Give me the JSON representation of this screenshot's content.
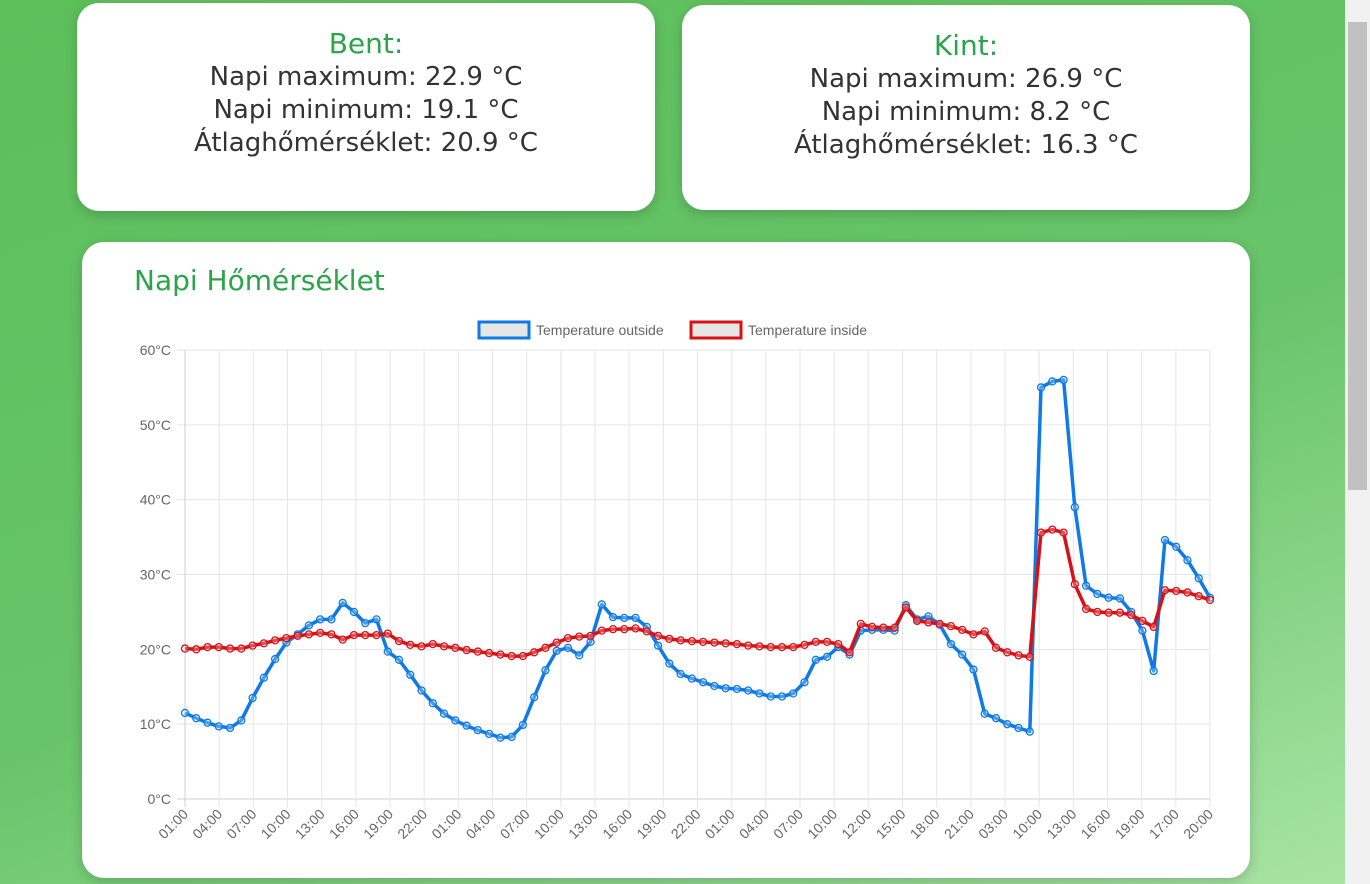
{
  "bent": {
    "title": "Bent:",
    "max_line": "Napi maximum: 22.9 °C",
    "min_line": "Napi minimum: 19.1 °C",
    "avg_line": "Átlaghőmérséklet: 20.9 °C"
  },
  "kint": {
    "title": "Kint:",
    "max_line": "Napi maximum: 26.9 °C",
    "min_line": "Napi minimum: 8.2 °C",
    "avg_line": "Átlaghőmérséklet: 16.3 °C"
  },
  "chart_title": "Napi Hőmérséklet",
  "chart_data": {
    "type": "line",
    "ylim": [
      0,
      60
    ],
    "y_ticks": [
      "0°C",
      "10°C",
      "20°C",
      "30°C",
      "40°C",
      "50°C",
      "60°C"
    ],
    "x_tick_labels": [
      "01:00",
      "04:00",
      "07:00",
      "10:00",
      "13:00",
      "16:00",
      "19:00",
      "22:00",
      "01:00",
      "04:00",
      "07:00",
      "10:00",
      "13:00",
      "16:00",
      "19:00",
      "22:00",
      "01:00",
      "04:00",
      "07:00",
      "10:00",
      "12:00",
      "15:00",
      "18:00",
      "21:00",
      "03:00",
      "10:00",
      "13:00",
      "16:00",
      "19:00",
      "17:00",
      "20:00"
    ],
    "grid": true,
    "legend_position": "top",
    "series": [
      {
        "name": "Temperature outside",
        "color": "#0d7ae6",
        "values": [
          11.5,
          10.8,
          10.2,
          9.7,
          9.5,
          10.5,
          13.5,
          16.2,
          18.7,
          20.9,
          22.0,
          23.2,
          24.0,
          24.0,
          26.2,
          25.0,
          23.5,
          24.0,
          19.7,
          18.6,
          16.6,
          14.5,
          12.8,
          11.4,
          10.5,
          9.8,
          9.2,
          8.7,
          8.2,
          8.3,
          9.9,
          13.6,
          17.2,
          19.8,
          20.2,
          19.2,
          21.0,
          26.0,
          24.3,
          24.2,
          24.2,
          23.0,
          20.5,
          18.1,
          16.7,
          16.1,
          15.6,
          15.1,
          14.8,
          14.7,
          14.5,
          14.1,
          13.7,
          13.7,
          14.1,
          15.6,
          18.6,
          19.0,
          20.3,
          19.3,
          22.5,
          22.6,
          22.6,
          22.5,
          25.9,
          24.0,
          24.4,
          23.3,
          20.7,
          19.3,
          17.3,
          11.4,
          10.8,
          10.0,
          9.5,
          9.0,
          55.0,
          55.8,
          56.0,
          39.0,
          28.5,
          27.4,
          26.9,
          26.8,
          25.0,
          22.5,
          17.1,
          34.6,
          33.7,
          31.9,
          29.5,
          26.9
        ]
      },
      {
        "name": "Temperature inside",
        "color": "#d81116",
        "values": [
          20.1,
          20.0,
          20.3,
          20.3,
          20.1,
          20.1,
          20.5,
          20.8,
          21.2,
          21.5,
          21.8,
          22.0,
          22.2,
          22.0,
          21.3,
          21.9,
          21.9,
          21.9,
          22.1,
          21.1,
          20.6,
          20.4,
          20.7,
          20.4,
          20.2,
          19.9,
          19.7,
          19.5,
          19.3,
          19.1,
          19.1,
          19.6,
          20.2,
          20.9,
          21.5,
          21.7,
          21.8,
          22.5,
          22.7,
          22.7,
          22.8,
          22.4,
          21.8,
          21.4,
          21.2,
          21.1,
          21.0,
          20.9,
          20.8,
          20.7,
          20.5,
          20.4,
          20.3,
          20.3,
          20.3,
          20.6,
          21.0,
          21.0,
          20.7,
          19.6,
          23.4,
          23.0,
          22.9,
          22.9,
          25.6,
          23.8,
          23.6,
          23.4,
          23.1,
          22.6,
          22.0,
          22.4,
          20.2,
          19.6,
          19.2,
          19.0,
          35.6,
          36.0,
          35.6,
          28.7,
          25.4,
          25.0,
          24.9,
          24.9,
          24.6,
          23.8,
          23.0,
          27.9,
          27.8,
          27.6,
          27.1,
          26.6
        ]
      }
    ]
  }
}
